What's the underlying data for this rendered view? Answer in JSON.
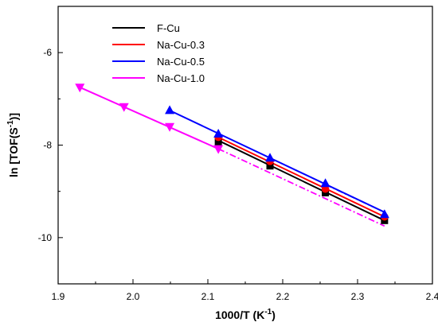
{
  "chart_data": {
    "type": "scatter",
    "title": "",
    "xlabel": "1000/T (K",
    "xlabel_sup": "-1",
    "xlabel_end": ")",
    "ylabel": "ln [TOF(S",
    "ylabel_sup": "-1",
    "ylabel_end": ")]",
    "xlim": [
      1.9,
      2.4
    ],
    "ylim": [
      -11.0,
      -5.0
    ],
    "x_ticks": [
      1.9,
      2.0,
      2.1,
      2.2,
      2.3,
      2.4
    ],
    "x_tick_labels": [
      "1.9",
      "2.0",
      "2.1",
      "2.2",
      "2.3",
      "2.4"
    ],
    "y_ticks": [
      -10,
      -8,
      -6
    ],
    "y_tick_labels": [
      "-10",
      "-8",
      "-6"
    ],
    "grid": false,
    "legend_position": "top-left",
    "series": [
      {
        "name": "F-Cu",
        "color": "#000000",
        "marker": "square",
        "x": [
          2.114,
          2.183,
          2.257,
          2.336
        ],
        "y": [
          -7.93,
          -8.45,
          -9.03,
          -9.63
        ],
        "fit_x": [
          2.114,
          2.336
        ],
        "fit_y": [
          -7.9,
          -9.63
        ],
        "fit_style": "solid"
      },
      {
        "name": "Na-Cu-0.3",
        "color": "#ff0000",
        "marker": "circle",
        "x": [
          2.114,
          2.183,
          2.257,
          2.336
        ],
        "y": [
          -7.83,
          -8.35,
          -8.95,
          -9.55
        ],
        "fit_x": [
          2.114,
          2.336
        ],
        "fit_y": [
          -7.83,
          -9.55
        ],
        "fit_style": "solid"
      },
      {
        "name": "Na-Cu-0.5",
        "color": "#0000ff",
        "marker": "triangle-up",
        "x": [
          2.049,
          2.114,
          2.183,
          2.257,
          2.336
        ],
        "y": [
          -7.25,
          -7.76,
          -8.28,
          -8.83,
          -9.5
        ],
        "fit_x": [
          2.049,
          2.336
        ],
        "fit_y": [
          -7.25,
          -9.45
        ],
        "fit_style": "solid",
        "ext_x": [
          2.257,
          2.336
        ],
        "ext_y": [
          -8.85,
          -9.45
        ]
      },
      {
        "name": "Na-Cu-1.0",
        "color": "#ff00ff",
        "marker": "triangle-down",
        "x": [
          1.929,
          1.988,
          2.049,
          2.114
        ],
        "y": [
          -6.75,
          -7.17,
          -7.6,
          -8.08
        ],
        "fit_x": [
          1.929,
          2.114
        ],
        "fit_y": [
          -6.75,
          -8.08
        ],
        "fit_style": "solid",
        "ext_x": [
          2.114,
          2.336
        ],
        "ext_y": [
          -8.08,
          -9.75
        ]
      }
    ]
  }
}
